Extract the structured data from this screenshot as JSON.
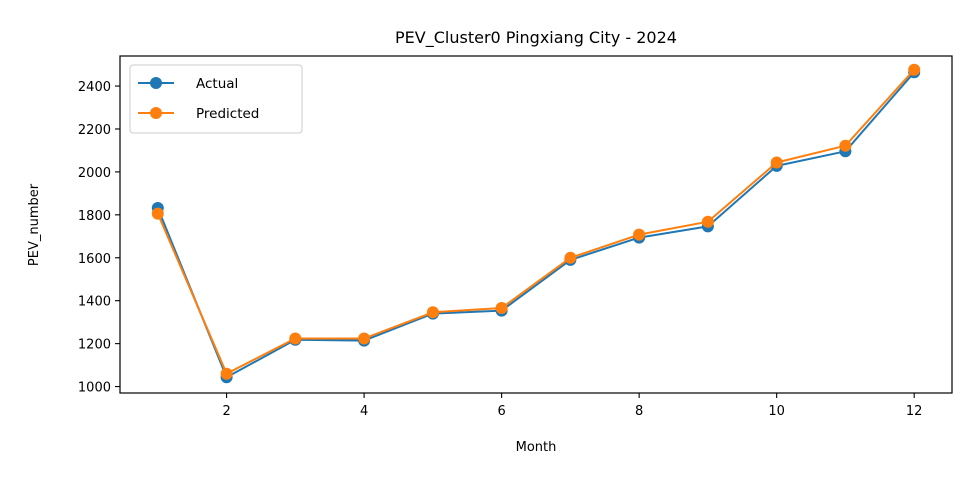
{
  "chart_data": {
    "type": "line",
    "title": "PEV_Cluster0 Pingxiang City - 2024",
    "xlabel": "Month",
    "ylabel": "PEV_number",
    "x": [
      1,
      2,
      3,
      4,
      5,
      6,
      7,
      8,
      9,
      10,
      11,
      12
    ],
    "xlim": [
      0.45,
      12.55
    ],
    "ylim": [
      970,
      2540
    ],
    "xticks": [
      "2",
      "4",
      "6",
      "8",
      "10",
      "12"
    ],
    "yticks": [
      "1000",
      "1200",
      "1400",
      "1600",
      "1800",
      "2000",
      "2200",
      "2400"
    ],
    "grid": false,
    "legend_position": "upper left",
    "series": [
      {
        "name": "Actual",
        "color": "#1f77b4",
        "marker": "circle",
        "values": [
          1832,
          1043,
          1218,
          1214,
          1340,
          1354,
          1590,
          1694,
          1746,
          2028,
          2096,
          2464
        ]
      },
      {
        "name": "Predicted",
        "color": "#ff7f0e",
        "marker": "circle",
        "values": [
          1806,
          1060,
          1224,
          1224,
          1346,
          1366,
          1600,
          1708,
          1768,
          2044,
          2122,
          2476
        ]
      }
    ]
  }
}
